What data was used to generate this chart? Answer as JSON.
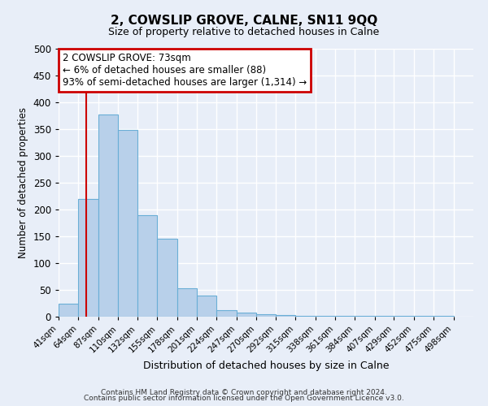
{
  "title": "2, COWSLIP GROVE, CALNE, SN11 9QQ",
  "subtitle": "Size of property relative to detached houses in Calne",
  "xlabel": "Distribution of detached houses by size in Calne",
  "ylabel": "Number of detached properties",
  "bar_values": [
    25,
    220,
    378,
    348,
    190,
    145,
    53,
    40,
    12,
    8,
    5,
    3,
    2,
    1,
    1,
    1,
    1,
    1,
    1,
    1
  ],
  "bin_left": [
    41,
    64,
    87,
    110,
    132,
    155,
    178,
    201,
    224,
    247,
    270,
    292,
    315,
    338,
    361,
    384,
    407,
    429,
    452,
    475
  ],
  "bin_right": [
    64,
    87,
    110,
    132,
    155,
    178,
    201,
    224,
    247,
    270,
    292,
    315,
    338,
    361,
    384,
    407,
    429,
    452,
    475,
    498
  ],
  "tick_positions": [
    41,
    64,
    87,
    110,
    132,
    155,
    178,
    201,
    224,
    247,
    270,
    292,
    315,
    338,
    361,
    384,
    407,
    429,
    452,
    475,
    498
  ],
  "tick_labels": [
    "41sqm",
    "64sqm",
    "87sqm",
    "110sqm",
    "132sqm",
    "155sqm",
    "178sqm",
    "201sqm",
    "224sqm",
    "247sqm",
    "270sqm",
    "292sqm",
    "315sqm",
    "338sqm",
    "361sqm",
    "384sqm",
    "407sqm",
    "429sqm",
    "452sqm",
    "475sqm",
    "498sqm"
  ],
  "bar_color": "#b8d0ea",
  "bar_edge_color": "#6aaed6",
  "vline_x": 73,
  "vline_color": "#cc0000",
  "ylim": [
    0,
    500
  ],
  "yticks": [
    0,
    50,
    100,
    150,
    200,
    250,
    300,
    350,
    400,
    450,
    500
  ],
  "xlim_left": 41,
  "xlim_right": 521,
  "annotation_title": "2 COWSLIP GROVE: 73sqm",
  "annotation_line1": "← 6% of detached houses are smaller (88)",
  "annotation_line2": "93% of semi-detached houses are larger (1,314) →",
  "annotation_box_color": "#cc0000",
  "footer_line1": "Contains HM Land Registry data © Crown copyright and database right 2024.",
  "footer_line2": "Contains public sector information licensed under the Open Government Licence v3.0.",
  "bg_color": "#e8eef8",
  "grid_color": "#ffffff"
}
